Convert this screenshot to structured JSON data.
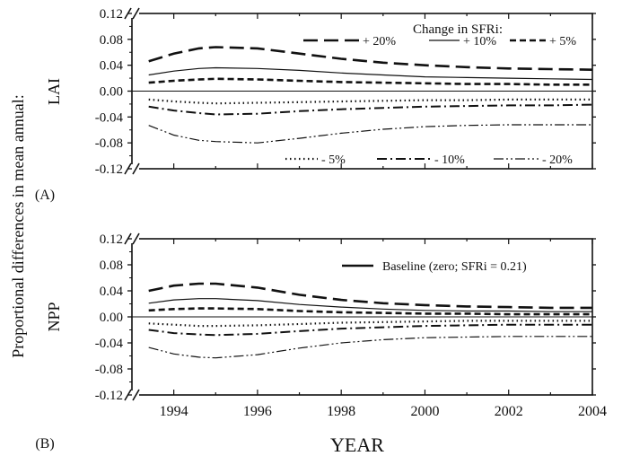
{
  "figure": {
    "ylabel": "Proportional differences in mean annual:",
    "xlabel": "YEAR"
  },
  "chart_data": [
    {
      "type": "line",
      "panel_label": "(A)",
      "ylabel": "LAI",
      "xlim": [
        1993,
        2004
      ],
      "ylim": [
        -0.12,
        0.12
      ],
      "yticks": [
        "0.12",
        "0.08",
        "0.04",
        "0.00",
        "-0.04",
        "-0.08",
        "-0.12"
      ],
      "xticks": [],
      "axis_break": true,
      "grid": false,
      "legend_title": "Change in SFRi:",
      "legend_placement": "top-right and bottom-right",
      "series": [
        {
          "name": "+ 20%",
          "style": "longdash",
          "x": [
            1993.4,
            1994,
            1994.6,
            1995,
            1996,
            1997,
            1998,
            1999,
            2000,
            2001,
            2002,
            2003,
            2004
          ],
          "values": [
            0.046,
            0.058,
            0.066,
            0.068,
            0.066,
            0.058,
            0.05,
            0.044,
            0.04,
            0.037,
            0.035,
            0.034,
            0.033
          ]
        },
        {
          "name": "+ 10%",
          "style": "solid",
          "x": [
            1993.4,
            1994,
            1994.6,
            1995,
            1996,
            1997,
            1998,
            1999,
            2000,
            2001,
            2002,
            2003,
            2004
          ],
          "values": [
            0.025,
            0.031,
            0.035,
            0.036,
            0.035,
            0.032,
            0.028,
            0.025,
            0.022,
            0.021,
            0.02,
            0.019,
            0.018
          ]
        },
        {
          "name": "+ 5%",
          "style": "dash",
          "x": [
            1993.4,
            1994,
            1994.6,
            1995,
            1996,
            1997,
            1998,
            1999,
            2000,
            2001,
            2002,
            2003,
            2004
          ],
          "values": [
            0.013,
            0.016,
            0.018,
            0.019,
            0.018,
            0.016,
            0.014,
            0.013,
            0.012,
            0.011,
            0.011,
            0.01,
            0.01
          ]
        },
        {
          "name": "- 5%",
          "style": "dot",
          "x": [
            1993.4,
            1994,
            1994.6,
            1995,
            1996,
            1997,
            1998,
            1999,
            2000,
            2001,
            2002,
            2003,
            2004
          ],
          "values": [
            -0.013,
            -0.016,
            -0.018,
            -0.019,
            -0.018,
            -0.017,
            -0.016,
            -0.015,
            -0.014,
            -0.014,
            -0.013,
            -0.013,
            -0.013
          ]
        },
        {
          "name": "- 10%",
          "style": "dashdot",
          "x": [
            1993.4,
            1994,
            1994.6,
            1995,
            1996,
            1997,
            1998,
            1999,
            2000,
            2001,
            2002,
            2003,
            2004
          ],
          "values": [
            -0.024,
            -0.03,
            -0.034,
            -0.036,
            -0.035,
            -0.031,
            -0.028,
            -0.026,
            -0.024,
            -0.023,
            -0.022,
            -0.022,
            -0.021
          ]
        },
        {
          "name": "- 20%",
          "style": "dashdotdot",
          "x": [
            1993.4,
            1994,
            1994.6,
            1995,
            1996,
            1997,
            1998,
            1999,
            2000,
            2001,
            2002,
            2003,
            2004
          ],
          "values": [
            -0.053,
            -0.068,
            -0.076,
            -0.078,
            -0.08,
            -0.073,
            -0.065,
            -0.059,
            -0.055,
            -0.053,
            -0.052,
            -0.052,
            -0.052
          ]
        }
      ],
      "baseline": 0.0
    },
    {
      "type": "line",
      "panel_label": "(B)",
      "ylabel": "NPP",
      "xlim": [
        1993,
        2004
      ],
      "ylim": [
        -0.12,
        0.12
      ],
      "yticks": [
        "0.12",
        "0.08",
        "0.04",
        "0.00",
        "-0.04",
        "-0.08",
        "-0.12"
      ],
      "xticks": [
        "1994",
        "1996",
        "1998",
        "2000",
        "2002",
        "2004"
      ],
      "axis_break": true,
      "grid": false,
      "legend_entry": "Baseline (zero; SFRi = 0.21)",
      "legend_placement": "top-right",
      "series": [
        {
          "name": "+ 20%",
          "style": "longdash",
          "x": [
            1993.4,
            1994,
            1994.6,
            1995,
            1996,
            1997,
            1998,
            1999,
            2000,
            2001,
            2002,
            2003,
            2004
          ],
          "values": [
            0.04,
            0.048,
            0.051,
            0.051,
            0.045,
            0.034,
            0.026,
            0.021,
            0.018,
            0.016,
            0.015,
            0.014,
            0.014
          ]
        },
        {
          "name": "+ 10%",
          "style": "solid",
          "x": [
            1993.4,
            1994,
            1994.6,
            1995,
            1996,
            1997,
            1998,
            1999,
            2000,
            2001,
            2002,
            2003,
            2004
          ],
          "values": [
            0.021,
            0.026,
            0.028,
            0.028,
            0.025,
            0.019,
            0.015,
            0.012,
            0.01,
            0.009,
            0.009,
            0.008,
            0.008
          ]
        },
        {
          "name": "+ 5%",
          "style": "dash",
          "x": [
            1993.4,
            1994,
            1994.6,
            1995,
            1996,
            1997,
            1998,
            1999,
            2000,
            2001,
            2002,
            2003,
            2004
          ],
          "values": [
            0.01,
            0.012,
            0.013,
            0.013,
            0.012,
            0.009,
            0.007,
            0.006,
            0.005,
            0.005,
            0.004,
            0.004,
            0.004
          ]
        },
        {
          "name": "- 5%",
          "style": "dot",
          "x": [
            1993.4,
            1994,
            1994.6,
            1995,
            1996,
            1997,
            1998,
            1999,
            2000,
            2001,
            2002,
            2003,
            2004
          ],
          "values": [
            -0.01,
            -0.012,
            -0.014,
            -0.014,
            -0.013,
            -0.011,
            -0.009,
            -0.008,
            -0.007,
            -0.006,
            -0.006,
            -0.006,
            -0.006
          ]
        },
        {
          "name": "- 10%",
          "style": "dashdot",
          "x": [
            1993.4,
            1994,
            1994.6,
            1995,
            1996,
            1997,
            1998,
            1999,
            2000,
            2001,
            2002,
            2003,
            2004
          ],
          "values": [
            -0.02,
            -0.025,
            -0.027,
            -0.028,
            -0.026,
            -0.022,
            -0.018,
            -0.016,
            -0.014,
            -0.013,
            -0.012,
            -0.012,
            -0.012
          ]
        },
        {
          "name": "- 20%",
          "style": "dashdotdot",
          "x": [
            1993.4,
            1994,
            1994.6,
            1995,
            1996,
            1997,
            1998,
            1999,
            2000,
            2001,
            2002,
            2003,
            2004
          ],
          "values": [
            -0.047,
            -0.057,
            -0.062,
            -0.063,
            -0.058,
            -0.048,
            -0.04,
            -0.035,
            -0.032,
            -0.031,
            -0.03,
            -0.03,
            -0.03
          ]
        }
      ],
      "baseline": 0.0
    }
  ]
}
